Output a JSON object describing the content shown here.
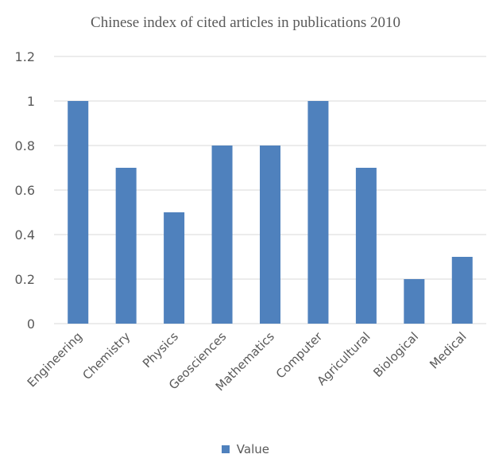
{
  "chart_data": {
    "type": "bar",
    "title": "Chinese index of cited articles in publications 2010",
    "categories": [
      "Engineering",
      "Chemistry",
      "Physics",
      "Geosciences",
      "Mathematics",
      "Computer",
      "Agricultural",
      "Biological",
      "Medical"
    ],
    "series": [
      {
        "name": "Value",
        "values": [
          1,
          0.7,
          0.5,
          0.8,
          0.8,
          1,
          0.7,
          0.2,
          0.3
        ]
      }
    ],
    "y_ticks": [
      "0",
      "0.2",
      "0.4",
      "0.6",
      "0.8",
      "1",
      "1.2"
    ],
    "ylim": [
      0,
      1.2
    ],
    "grid": true,
    "legend_position": "bottom",
    "colors": {
      "bar": "#4F81BD",
      "grid": "#D9D9D9",
      "text": "#595959"
    }
  }
}
